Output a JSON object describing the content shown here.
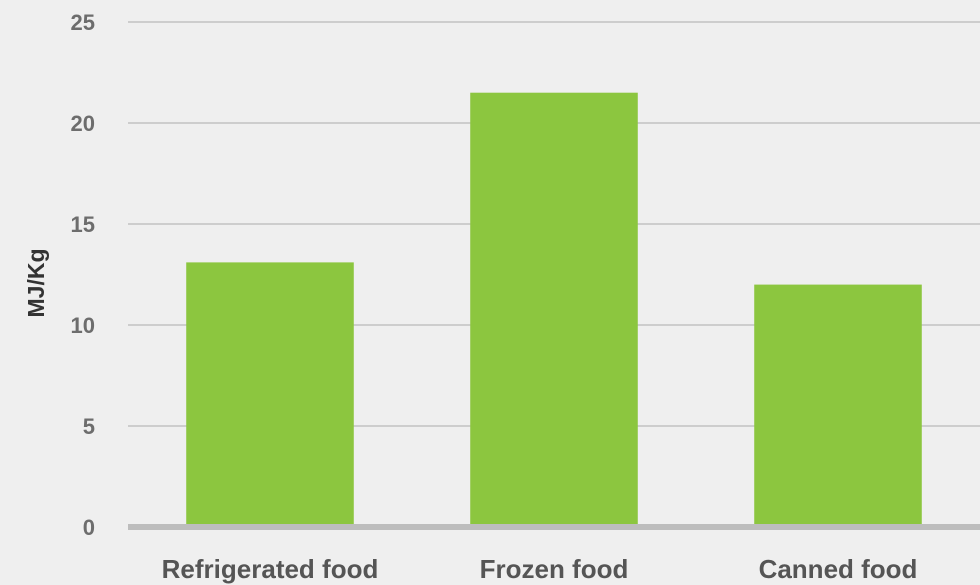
{
  "chart_data": {
    "type": "bar",
    "title": "",
    "xlabel": "",
    "ylabel": "MJ/Kg",
    "categories": [
      "Refrigerated food",
      "Frozen food",
      "Canned food"
    ],
    "values": [
      13.1,
      21.5,
      12.0
    ],
    "ylim": [
      0,
      25
    ],
    "yticks": [
      0,
      5,
      10,
      15,
      20,
      25
    ],
    "ytick_labels": [
      "0",
      "5",
      "10",
      "15",
      "20",
      "25"
    ],
    "grid": true,
    "legend": "none"
  },
  "colors": {
    "background": "#efefef",
    "bar": "#8cc63f",
    "gridline": "#cdcdcd",
    "baseline": "#bdbdbd",
    "tick_text": "#6d6d6d",
    "category_text": "#555555",
    "axis_title_text": "#333333"
  }
}
